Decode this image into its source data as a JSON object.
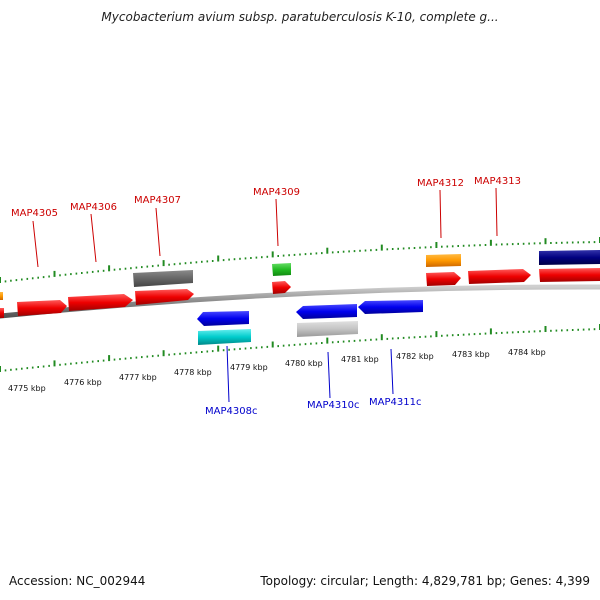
{
  "header": {
    "title": "Mycobacterium avium subsp. paratuberculosis K-10, complete g..."
  },
  "footer": {
    "accession": "Accession: NC_002944",
    "summary": "Topology: circular; Length: 4,829,781 bp; Genes: 4,399"
  },
  "colors": {
    "forward_label": "#cc0000",
    "reverse_label": "#0000cc",
    "ticks": "#228b22",
    "backbone": "#888888"
  },
  "scale": {
    "unit": "kbp",
    "ticks": [
      "4775 kbp",
      "4776 kbp",
      "4777 kbp",
      "4778 kbp",
      "4779 kbp",
      "4780 kbp",
      "4781 kbp",
      "4782 kbp",
      "4783 kbp",
      "4784 kbp"
    ]
  },
  "features": {
    "forward_labels": [
      "MAP4305",
      "MAP4306",
      "MAP4307",
      "MAP4309",
      "MAP4312",
      "MAP4313"
    ],
    "reverse_labels": [
      "MAP4308c",
      "MAP4310c",
      "MAP4311c"
    ]
  }
}
